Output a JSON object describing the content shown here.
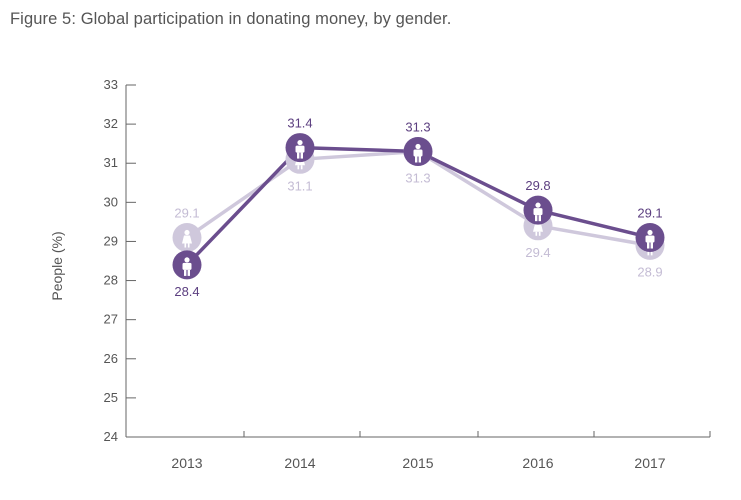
{
  "title": "Figure 5: Global participation in donating money, by gender.",
  "chart_data": {
    "type": "line",
    "categories": [
      "2013",
      "2014",
      "2015",
      "2016",
      "2017"
    ],
    "ylabel": "People (%)",
    "xlabel": "",
    "ylim": [
      24,
      33
    ],
    "yticks": [
      24,
      25,
      26,
      27,
      28,
      29,
      30,
      31,
      32,
      33
    ],
    "series": [
      {
        "name": "Men",
        "icon": "male-person-icon",
        "color": "#6b4e8e",
        "values": [
          28.4,
          31.4,
          31.3,
          29.8,
          29.1
        ],
        "labels": [
          "28.4",
          "31.4",
          "31.3",
          "29.8",
          "29.1"
        ]
      },
      {
        "name": "Women",
        "icon": "female-person-icon",
        "color": "#cfc8dc",
        "values": [
          29.1,
          31.1,
          31.3,
          29.4,
          28.9
        ],
        "labels": [
          "29.1",
          "31.1",
          "31.3",
          "29.4",
          "28.9"
        ]
      }
    ]
  }
}
